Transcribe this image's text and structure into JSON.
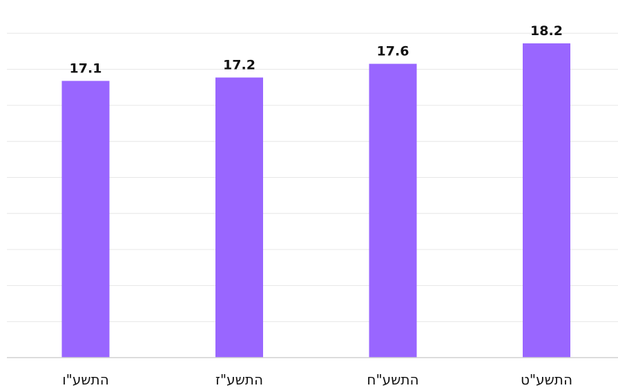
{
  "chart_data": {
    "type": "bar",
    "categories": [
      "התשע\"ו",
      "התשע\"ז",
      "התשע\"ח",
      "התשע\"ט"
    ],
    "values": [
      17.1,
      17.2,
      17.6,
      18.2
    ],
    "data_labels": [
      "17.1",
      "17.2",
      "17.6",
      "18.2"
    ],
    "title": "",
    "xlabel": "",
    "ylabel": "",
    "ylim": [
      9,
      18.5
    ],
    "grid": true,
    "legend": "none",
    "bar_color": "#9966ff"
  }
}
